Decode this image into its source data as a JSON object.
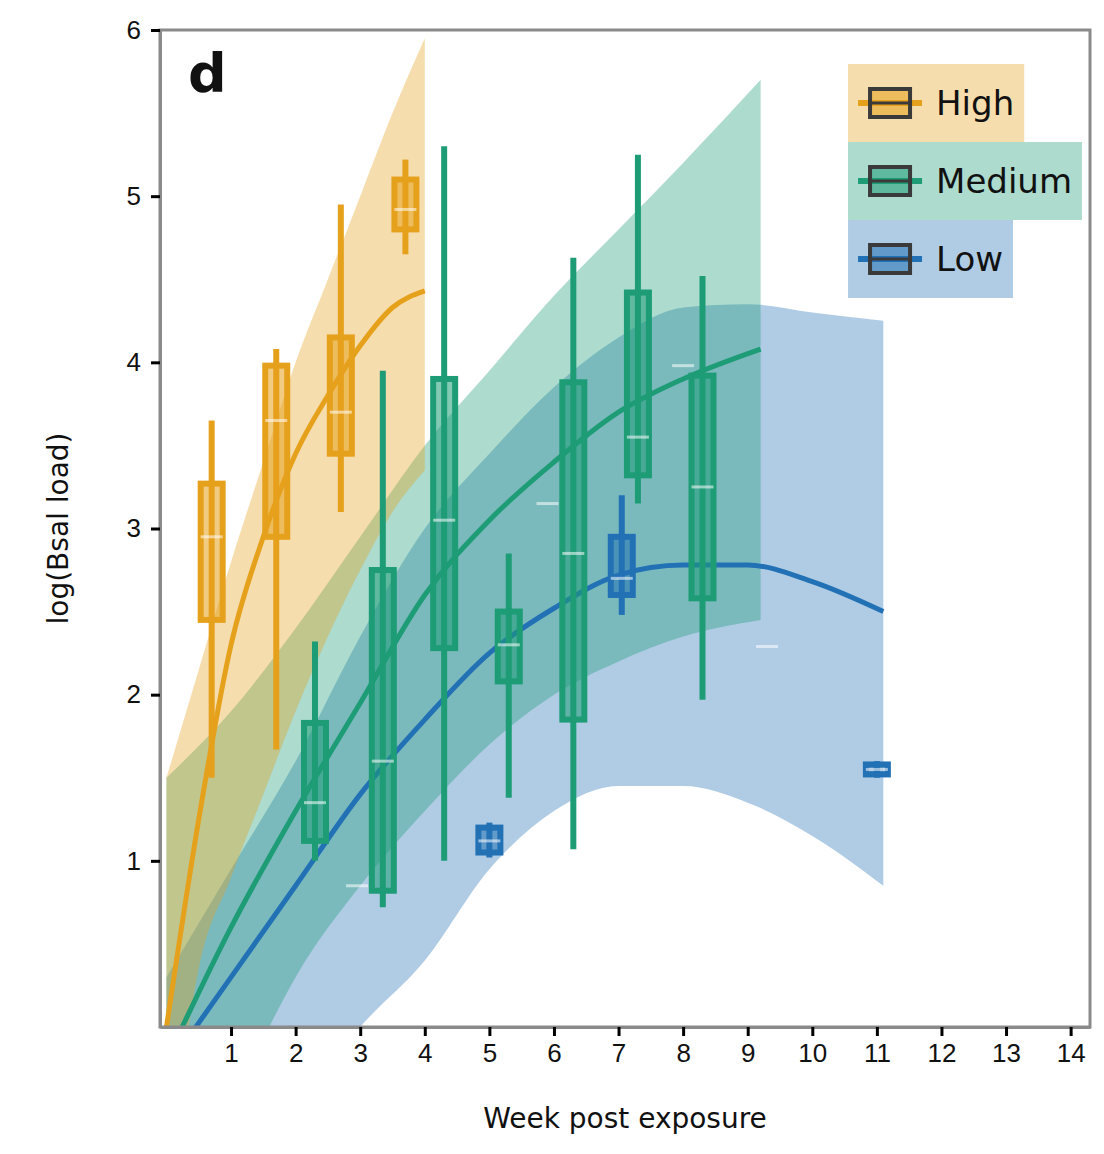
{
  "chart_data": {
    "type": "box",
    "title": "d",
    "x_label": "Week post exposure",
    "y_label": "log(Bsal load)",
    "xlim": [
      -0.1,
      14.3
    ],
    "xticks": [
      1,
      2,
      3,
      4,
      5,
      6,
      7,
      8,
      9,
      10,
      11,
      12,
      13,
      14
    ],
    "ylim": [
      0,
      6
    ],
    "yticks": [
      1,
      2,
      3,
      4,
      5,
      6
    ],
    "legend": "top-right",
    "series": [
      {
        "name": "High",
        "color": "#e6a11c",
        "curve": {
          "x": [
            0,
            0.5,
            1,
            1.5,
            2,
            2.5,
            3,
            3.5,
            4
          ],
          "y": [
            0,
            1.25,
            2.3,
            2.95,
            3.45,
            3.8,
            4.1,
            4.33,
            4.43
          ],
          "lower": [
            -1,
            0.35,
            0.9,
            1.4,
            1.9,
            2.35,
            2.75,
            3.1,
            3.35
          ],
          "upper": [
            1.5,
            2.15,
            2.8,
            3.4,
            4.0,
            4.5,
            5.0,
            5.5,
            5.95
          ]
        },
        "boxes": [
          {
            "x": 0.7,
            "min": 1.5,
            "q1": 2.45,
            "median": 2.95,
            "q3": 3.27,
            "max": 3.65
          },
          {
            "x": 1.7,
            "min": 1.67,
            "q1": 2.95,
            "median": 3.65,
            "q3": 3.98,
            "max": 4.08
          },
          {
            "x": 2.7,
            "min": 3.1,
            "q1": 3.45,
            "median": 3.7,
            "q3": 4.15,
            "max": 4.95
          },
          {
            "x": 3.7,
            "min": 4.65,
            "q1": 4.8,
            "median": 4.92,
            "q3": 5.1,
            "max": 5.22
          }
        ]
      },
      {
        "name": "Medium",
        "color": "#1d9c76",
        "curve": {
          "x": [
            0,
            1,
            2,
            3,
            4,
            5,
            6,
            7,
            8,
            9.2
          ],
          "y": [
            -0.2,
            0.6,
            1.3,
            1.95,
            2.6,
            3.05,
            3.4,
            3.7,
            3.9,
            4.08
          ],
          "lower": [
            -1.5,
            -0.5,
            0.3,
            0.85,
            1.3,
            1.7,
            2.0,
            2.2,
            2.35,
            2.45
          ],
          "upper": [
            1.5,
            1.9,
            2.4,
            2.95,
            3.5,
            3.95,
            4.4,
            4.8,
            5.2,
            5.7
          ]
        },
        "boxes": [
          {
            "x": 2.3,
            "min": 1.0,
            "q1": 1.12,
            "median": 1.35,
            "q3": 1.83,
            "max": 2.32
          },
          {
            "x": 3.35,
            "min": 0.72,
            "q1": 0.82,
            "median": 1.6,
            "q3": 2.75,
            "max": 3.95
          },
          {
            "x": 4.3,
            "min": 1.0,
            "q1": 2.28,
            "median": 3.05,
            "q3": 3.9,
            "max": 5.3
          },
          {
            "x": 5.3,
            "min": 1.38,
            "q1": 2.08,
            "median": 2.3,
            "q3": 2.5,
            "max": 2.85
          },
          {
            "x": 6.3,
            "min": 1.07,
            "q1": 1.85,
            "median": 2.85,
            "q3": 3.88,
            "max": 4.63
          },
          {
            "x": 7.3,
            "min": 3.15,
            "q1": 3.32,
            "median": 3.55,
            "q3": 4.42,
            "max": 5.25
          },
          {
            "x": 8.3,
            "min": 1.97,
            "q1": 2.58,
            "median": 3.25,
            "q3": 3.92,
            "max": 4.52
          },
          {
            "x": 9.3,
            "min": 2.29,
            "q1": 2.29,
            "median": 2.29,
            "q3": 2.29,
            "max": 2.29
          }
        ]
      },
      {
        "name": "Low",
        "color": "#2271b5",
        "curve": {
          "x": [
            0,
            1,
            2,
            3,
            4,
            5,
            6,
            7,
            8,
            9,
            10,
            11.1
          ],
          "y": [
            -0.25,
            0.3,
            0.85,
            1.4,
            1.85,
            2.25,
            2.52,
            2.72,
            2.78,
            2.78,
            2.68,
            2.5
          ],
          "lower": [
            -2,
            -1.3,
            -0.5,
            0,
            0.4,
            0.95,
            1.3,
            1.45,
            1.45,
            1.35,
            1.15,
            0.85
          ],
          "upper": [
            0.3,
            0.95,
            1.6,
            2.35,
            3.0,
            3.45,
            3.85,
            4.15,
            4.33,
            4.35,
            4.3,
            4.25
          ]
        },
        "boxes": [
          {
            "x": 2.95,
            "min": 0.85,
            "q1": 0.85,
            "median": 0.85,
            "q3": 0.85,
            "max": 0.85
          },
          {
            "x": 5.0,
            "min": 1.02,
            "q1": 1.05,
            "median": 1.12,
            "q3": 1.2,
            "max": 1.23
          },
          {
            "x": 5.9,
            "min": 3.15,
            "q1": 3.15,
            "median": 3.15,
            "q3": 3.15,
            "max": 3.15
          },
          {
            "x": 7.05,
            "min": 2.48,
            "q1": 2.6,
            "median": 2.7,
            "q3": 2.95,
            "max": 3.2
          },
          {
            "x": 8.0,
            "min": 3.98,
            "q1": 3.98,
            "median": 3.98,
            "q3": 3.98,
            "max": 3.98
          },
          {
            "x": 11.0,
            "min": 1.5,
            "q1": 1.52,
            "median": 1.55,
            "q3": 1.58,
            "max": 1.6
          }
        ]
      }
    ]
  }
}
